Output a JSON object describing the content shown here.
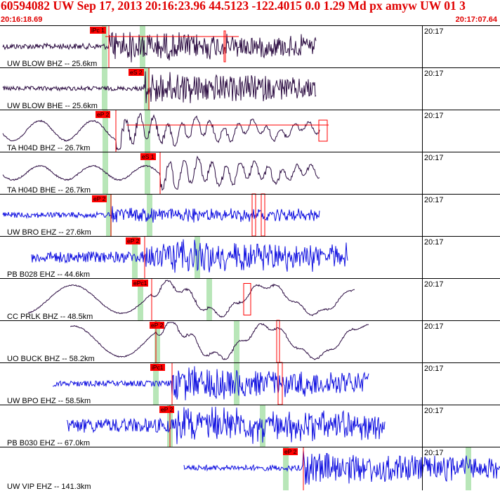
{
  "header": {
    "title": "60594082 UW Sep 17, 2013 20:16:23.96   44.5123 -122.4015  0.0 1.29 Md px amyw UW 01   3",
    "start_time": "20:16:18.69",
    "end_time": "20:17:07.64"
  },
  "colors": {
    "header_text": "#e00000",
    "pick_flag": "#ff0000",
    "pick_band": "#b8e6b8",
    "trace_dark": "#2a0a40",
    "trace_blue": "#1010e0",
    "grid": "#000000"
  },
  "panels": [
    {
      "time_label": "20:17",
      "station": "UW BLOW BHZ -- 25.6km",
      "pick": "iPc 1",
      "color": "trace_dark"
    },
    {
      "time_label": "20:17",
      "station": "UW BLOW BHE -- 25.6km",
      "pick": "eS 2",
      "color": "trace_dark"
    },
    {
      "time_label": "20:17",
      "station": "TA H04D BHZ -- 26.7km",
      "pick": "eP 2",
      "color": "trace_dark"
    },
    {
      "time_label": "20:17",
      "station": "TA H04D BHE -- 26.7km",
      "pick": "eS 1",
      "color": "trace_dark"
    },
    {
      "time_label": "20:17",
      "station": "UW BRO EHZ -- 27.6km",
      "pick": "eP 2",
      "color": "trace_blue"
    },
    {
      "time_label": "20:17",
      "station": "PB B028 EHZ -- 44.6km",
      "pick": "eP 2",
      "color": "trace_blue"
    },
    {
      "time_label": "20:17",
      "station": "CC PRLK BHZ -- 48.5km",
      "pick": "ePc1",
      "color": "trace_dark"
    },
    {
      "time_label": "20:17",
      "station": "UO BUCK BHZ -- 58.2km",
      "pick": "eP 2",
      "color": "trace_dark"
    },
    {
      "time_label": "20:17",
      "station": "UW BPO EHZ -- 58.5km",
      "pick": "iPc1",
      "color": "trace_blue"
    },
    {
      "time_label": "20:17",
      "station": "PB B030 EHZ -- 67.0km",
      "pick": "eP 2",
      "color": "trace_blue"
    },
    {
      "time_label": "20:17",
      "station": "UW VIP EHZ -- 141.3km",
      "pick": "eP 2",
      "color": "trace_blue"
    }
  ]
}
